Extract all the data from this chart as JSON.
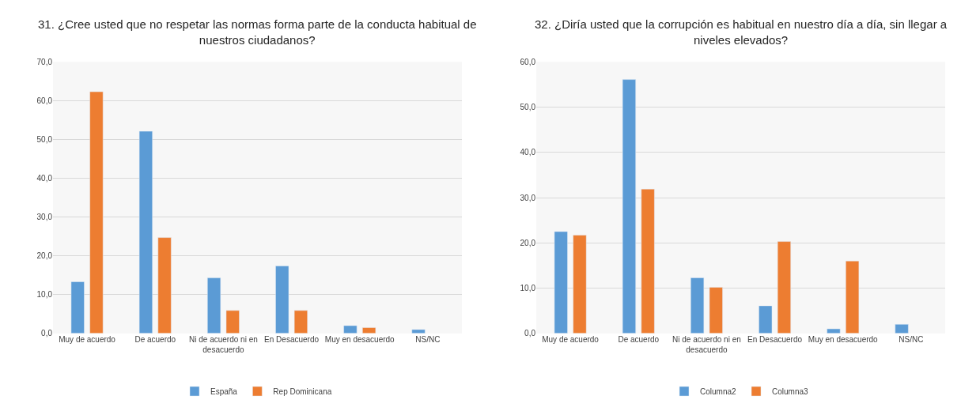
{
  "chart_data": [
    {
      "type": "bar",
      "title": "31. ¿Cree usted que no respetar las normas forma parte de la conducta habitual de nuestros ciudadanos?",
      "categories": [
        "Muy de acuerdo",
        "De acuerdo",
        "Ni de acuerdo ni en desacuerdo",
        "En Desacuerdo",
        "Muy en desacuerdo",
        "NS/NC"
      ],
      "series": [
        {
          "name": "España",
          "color": "#5b9bd5",
          "values": [
            13.3,
            52.1,
            14.3,
            17.4,
            2.0,
            1.0
          ]
        },
        {
          "name": "Rep Dominicana",
          "color": "#ed7d31",
          "values": [
            62.3,
            24.7,
            5.9,
            5.9,
            1.5,
            null
          ]
        }
      ],
      "ylim": [
        0,
        70
      ],
      "yticks": [
        {
          "value": 0,
          "label": "0,0"
        },
        {
          "value": 10,
          "label": "10,0"
        },
        {
          "value": 20,
          "label": "20,0"
        },
        {
          "value": 30,
          "label": "30,0"
        },
        {
          "value": 40,
          "label": "40,0"
        },
        {
          "value": 50,
          "label": "50,0"
        },
        {
          "value": 60,
          "label": "60,0"
        },
        {
          "value": 70,
          "label": "70,0"
        }
      ],
      "grid": "y",
      "legend": "bottom"
    },
    {
      "type": "bar",
      "title": "32. ¿Diría usted que la corrupción es habitual en nuestro día a día, sin llegar a niveles elevados?",
      "categories": [
        "Muy de acuerdo",
        "De acuerdo",
        "Ni de acuerdo ni en desacuerdo",
        "En Desacuerdo",
        "Muy en desacuerdo",
        "NS/NC"
      ],
      "series": [
        {
          "name": "Columna2",
          "color": "#5b9bd5",
          "values": [
            22.5,
            56.1,
            12.3,
            6.1,
            1.0,
            2.0
          ]
        },
        {
          "name": "Columna3",
          "color": "#ed7d31",
          "values": [
            21.7,
            31.9,
            10.2,
            20.3,
            16.0,
            null
          ]
        }
      ],
      "ylim": [
        0,
        60
      ],
      "yticks": [
        {
          "value": 0,
          "label": "0,0"
        },
        {
          "value": 10,
          "label": "10,0"
        },
        {
          "value": 20,
          "label": "20,0"
        },
        {
          "value": 30,
          "label": "30,0"
        },
        {
          "value": 40,
          "label": "40,0"
        },
        {
          "value": 50,
          "label": "50,0"
        },
        {
          "value": 60,
          "label": "60,0"
        }
      ],
      "grid": "y",
      "legend": "bottom"
    }
  ]
}
